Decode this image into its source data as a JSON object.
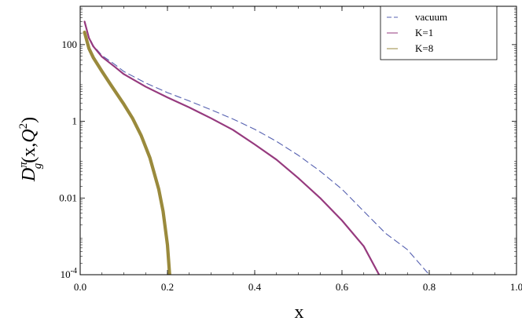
{
  "chart_data": {
    "type": "line",
    "xlabel": "x",
    "ylabel_parts": {
      "D": "D",
      "sup": "π",
      "sub": "g",
      "args": "(x,",
      "Q": "Q",
      "Qsup": "2",
      "close": ")"
    },
    "xlim": [
      0,
      1.0
    ],
    "ylim": [
      0.0001,
      1000
    ],
    "yscale": "log",
    "xticks": [
      {
        "value": 0.0,
        "label": "0.0"
      },
      {
        "value": 0.2,
        "label": "0.2"
      },
      {
        "value": 0.4,
        "label": "0.4"
      },
      {
        "value": 0.6,
        "label": "0.6"
      },
      {
        "value": 0.8,
        "label": "0.8"
      },
      {
        "value": 1.0,
        "label": "1.0"
      }
    ],
    "yticks": [
      {
        "value": 0.0001,
        "base": "10",
        "exp": "-4",
        "label": ""
      },
      {
        "value": 0.01,
        "base": "",
        "exp": "",
        "label": "0.01"
      },
      {
        "value": 1,
        "base": "",
        "exp": "",
        "label": "1"
      },
      {
        "value": 100,
        "base": "",
        "exp": "",
        "label": "100"
      }
    ],
    "legend_position": "top-right",
    "series": [
      {
        "name": "vacuum",
        "color": "#5560b0",
        "style": "dashed",
        "points": [
          [
            0.01,
            400
          ],
          [
            0.02,
            160
          ],
          [
            0.03,
            95
          ],
          [
            0.05,
            52
          ],
          [
            0.08,
            30
          ],
          [
            0.1,
            20
          ],
          [
            0.15,
            10
          ],
          [
            0.2,
            5.6
          ],
          [
            0.25,
            3.4
          ],
          [
            0.3,
            2.0
          ],
          [
            0.35,
            1.15
          ],
          [
            0.4,
            0.62
          ],
          [
            0.45,
            0.3
          ],
          [
            0.5,
            0.13
          ],
          [
            0.55,
            0.05
          ],
          [
            0.6,
            0.017
          ],
          [
            0.65,
            0.0045
          ],
          [
            0.7,
            0.0012
          ],
          [
            0.75,
            0.00045
          ],
          [
            0.8,
            0.0001
          ]
        ]
      },
      {
        "name": "K=1",
        "color": "#963a7e",
        "style": "solid",
        "points": [
          [
            0.01,
            400
          ],
          [
            0.02,
            150
          ],
          [
            0.03,
            90
          ],
          [
            0.05,
            48
          ],
          [
            0.08,
            26
          ],
          [
            0.1,
            17
          ],
          [
            0.15,
            8
          ],
          [
            0.2,
            4.2
          ],
          [
            0.25,
            2.3
          ],
          [
            0.3,
            1.2
          ],
          [
            0.35,
            0.6
          ],
          [
            0.4,
            0.25
          ],
          [
            0.45,
            0.1
          ],
          [
            0.5,
            0.033
          ],
          [
            0.55,
            0.01
          ],
          [
            0.6,
            0.0026
          ],
          [
            0.65,
            0.00055
          ],
          [
            0.685,
            0.0001
          ]
        ]
      },
      {
        "name": "K=8",
        "color": "#9a8a3c",
        "style": "solid",
        "points": [
          [
            0.01,
            210
          ],
          [
            0.02,
            80
          ],
          [
            0.03,
            46
          ],
          [
            0.05,
            20
          ],
          [
            0.07,
            9
          ],
          [
            0.1,
            2.8
          ],
          [
            0.12,
            1.2
          ],
          [
            0.14,
            0.42
          ],
          [
            0.16,
            0.11
          ],
          [
            0.18,
            0.017
          ],
          [
            0.19,
            0.0045
          ],
          [
            0.2,
            0.0006
          ],
          [
            0.205,
            0.0001
          ]
        ]
      }
    ]
  }
}
